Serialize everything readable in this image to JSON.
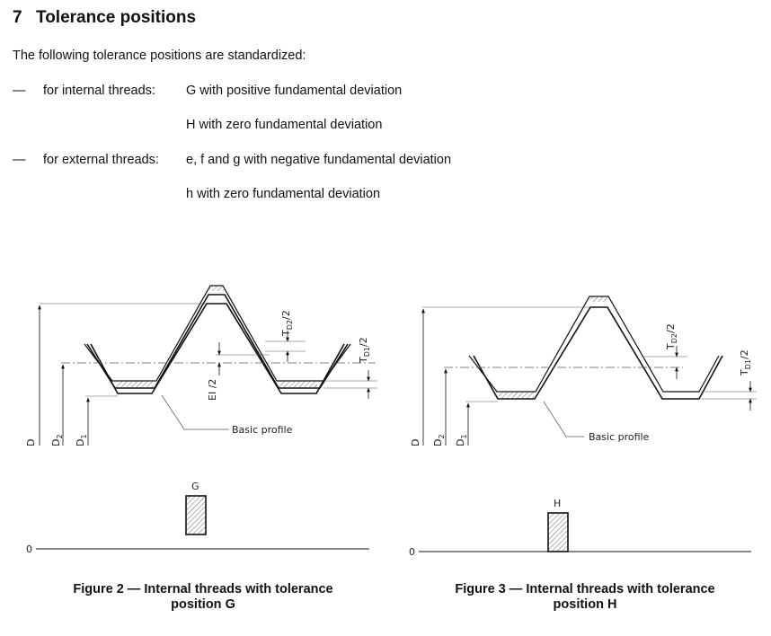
{
  "section": {
    "number": "7",
    "title": "Tolerance positions",
    "intro": "The following tolerance positions are standardized:",
    "items": [
      {
        "dash": "—",
        "label": "for internal threads:",
        "values": [
          "G with positive fundamental deviation",
          "H with zero fundamental deviation"
        ]
      },
      {
        "dash": "—",
        "label": "for external threads:",
        "values": [
          "e, f and g with negative fundamental deviation",
          "h with zero fundamental deviation"
        ]
      }
    ]
  },
  "figures": [
    {
      "caption_line1": "Figure 2 — Internal threads with tolerance",
      "caption_line2": "position G",
      "basic_profile_label": "Basic profile",
      "position_letter": "G",
      "zero_label": "0",
      "dims": {
        "D": "D",
        "D2": "D",
        "D2_sub": "2",
        "D1": "D",
        "D1_sub": "1",
        "TD2": "T",
        "TD2_sub": "D2",
        "TD2_tail": "/2",
        "TD1": "T",
        "TD1_sub": "D1",
        "TD1_tail": "/2",
        "EI": "EI /2"
      }
    },
    {
      "caption_line1": "Figure  3 — Internal threads with tolerance",
      "caption_line2": "position H",
      "basic_profile_label": "Basic profile",
      "position_letter": "H",
      "zero_label": "0",
      "dims": {
        "D": "D",
        "D2": "D",
        "D2_sub": "2",
        "D1": "D",
        "D1_sub": "1",
        "TD2": "T",
        "TD2_sub": "D2",
        "TD2_tail": "/2",
        "TD1": "T",
        "TD1_sub": "D1",
        "TD1_tail": "/2"
      }
    }
  ]
}
